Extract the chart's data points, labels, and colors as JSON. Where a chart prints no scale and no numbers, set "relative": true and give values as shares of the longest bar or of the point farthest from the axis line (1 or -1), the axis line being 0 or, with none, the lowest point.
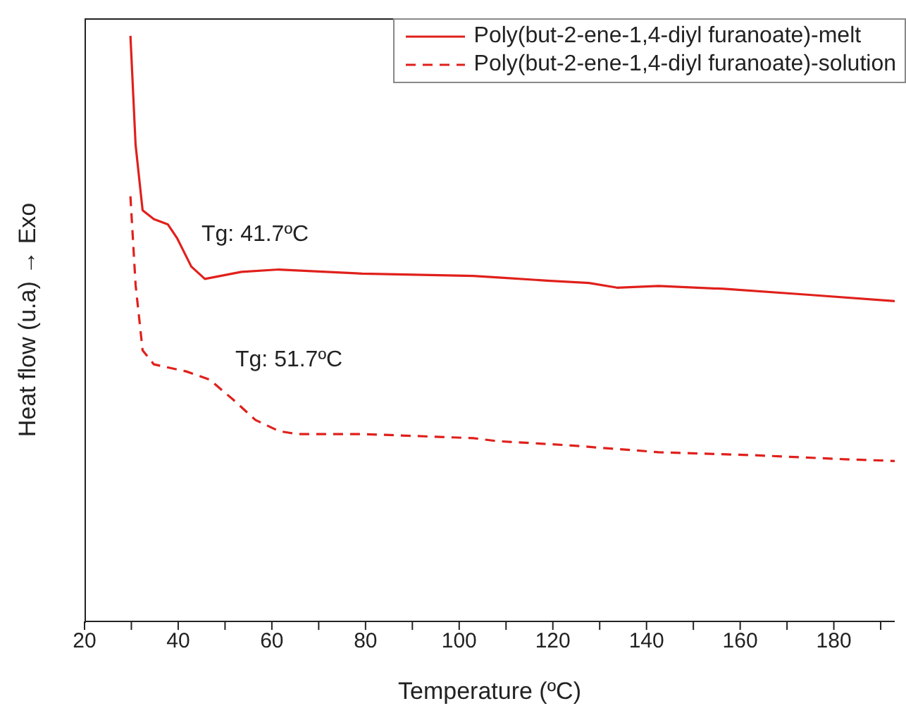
{
  "chart_data": {
    "type": "line",
    "relative": true,
    "xlabel": "Temperature (ºC)",
    "ylabel": "Heat flow (u.a) → Exo",
    "xlim": [
      20,
      193
    ],
    "xticks": [
      20,
      {
        "value": 30,
        "label": null
      },
      40,
      {
        "value": 50,
        "label": null
      },
      60,
      {
        "value": 70,
        "label": null
      },
      80,
      {
        "value": 90,
        "label": null
      },
      100,
      {
        "value": 110,
        "label": null
      },
      120,
      {
        "value": 130,
        "label": null
      },
      140,
      {
        "value": 150,
        "label": null
      },
      160,
      {
        "value": 170,
        "label": null
      },
      180,
      {
        "value": 190,
        "label": null
      }
    ],
    "legend": "top right",
    "grid": false,
    "annotations": [
      "Tg: 41.7ºC",
      "Tg: 51.7ºC"
    ],
    "series": [
      {
        "name": "Poly(but-2-ene-1,4-diyl furanoate)-melt",
        "color": "#e0201b",
        "line_style": "solid",
        "x": [
          29.8,
          30.9,
          32.4,
          34.8,
          37.8,
          39.8,
          42.8,
          45.7,
          53.5,
          61.5,
          79.3,
          103,
          109,
          118.8,
          127.7,
          133.7,
          142.6,
          156.5,
          174.3,
          193
        ],
        "values": [
          1.0,
          0.814,
          0.702,
          0.687,
          0.678,
          0.654,
          0.606,
          0.585,
          0.597,
          0.601,
          0.594,
          0.59,
          0.587,
          0.582,
          0.578,
          0.57,
          0.573,
          0.568,
          0.558,
          0.547
        ]
      },
      {
        "name": "Poly(but-2-ene-1,4-diyl furanoate)-solution",
        "color": "#e0201b",
        "line_style": "dashed",
        "x": [
          29.8,
          30.9,
          32.4,
          34.8,
          41.7,
          46.7,
          51.7,
          56.5,
          61.5,
          65.4,
          79.3,
          103,
          108,
          123,
          142.6,
          162.4,
          182.3,
          193
        ],
        "values": [
          0.726,
          0.575,
          0.463,
          0.439,
          0.427,
          0.413,
          0.379,
          0.344,
          0.325,
          0.32,
          0.32,
          0.313,
          0.308,
          0.301,
          0.289,
          0.284,
          0.277,
          0.274
        ]
      }
    ]
  }
}
